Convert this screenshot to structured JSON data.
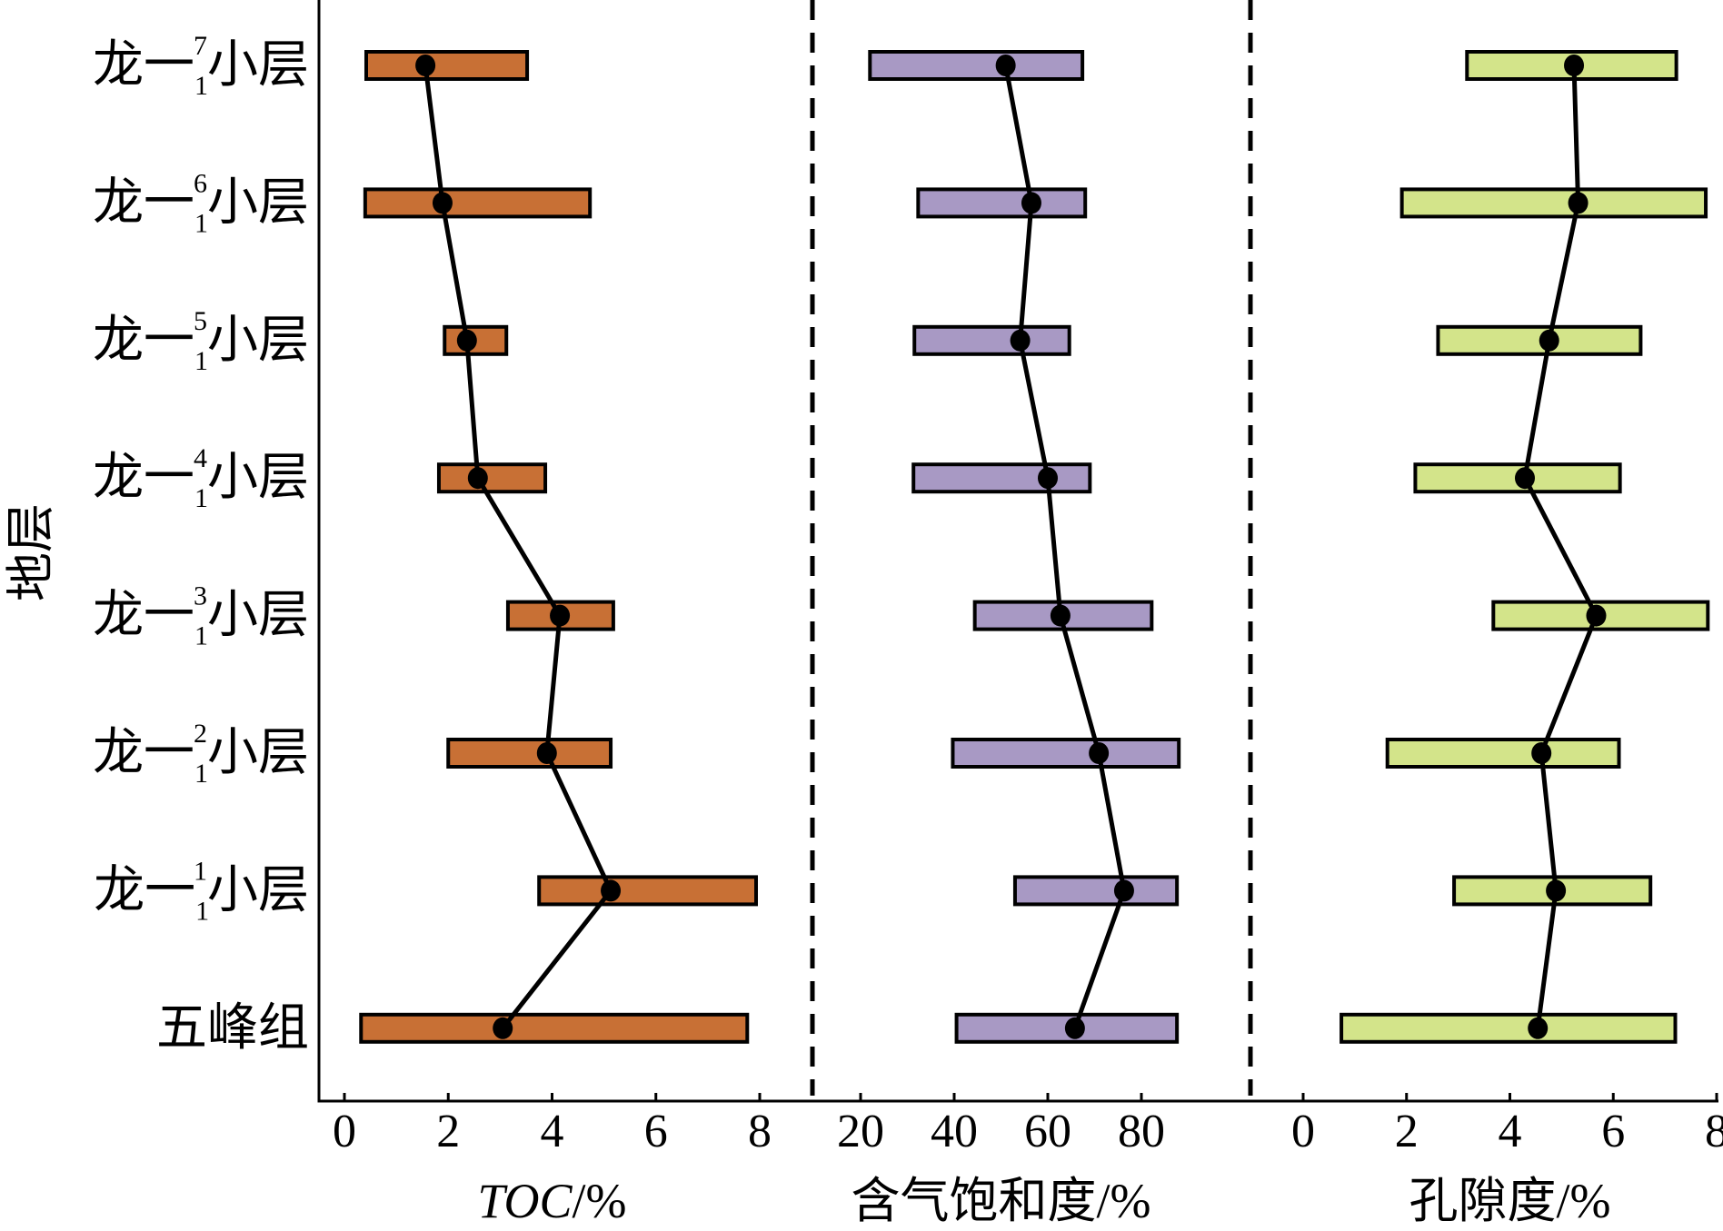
{
  "chart_data": {
    "type": "bar",
    "subtype": "floating-range-bars-with-mean-line",
    "ylabel": "地层",
    "categories": [
      {
        "name": "龙一1 7小层",
        "base": "龙一",
        "sub": "1",
        "sup": "7",
        "suffix": "小层"
      },
      {
        "name": "龙一1 6小层",
        "base": "龙一",
        "sub": "1",
        "sup": "6",
        "suffix": "小层"
      },
      {
        "name": "龙一1 5小层",
        "base": "龙一",
        "sub": "1",
        "sup": "5",
        "suffix": "小层"
      },
      {
        "name": "龙一1 4小层",
        "base": "龙一",
        "sub": "1",
        "sup": "4",
        "suffix": "小层"
      },
      {
        "name": "龙一1 3小层",
        "base": "龙一",
        "sub": "1",
        "sup": "3",
        "suffix": "小层"
      },
      {
        "name": "龙一1 2小层",
        "base": "龙一",
        "sub": "1",
        "sup": "2",
        "suffix": "小层"
      },
      {
        "name": "龙一1 1小层",
        "base": "龙一",
        "sub": "1",
        "sup": "1",
        "suffix": "小层"
      },
      {
        "name": "五峰组",
        "base": "五峰组",
        "sub": "",
        "sup": "",
        "suffix": ""
      }
    ],
    "panels": [
      {
        "id": "toc",
        "xlabel": "TOC/%",
        "xlabel_italic_part": "TOC",
        "xlabel_rest": "/%",
        "xlim": [
          0,
          8
        ],
        "ticks": [
          0,
          2,
          4,
          6,
          8
        ],
        "color": "#C87035",
        "min": [
          0.42,
          0.4,
          1.93,
          1.82,
          3.15,
          2.0,
          3.75,
          0.32
        ],
        "max": [
          3.52,
          4.73,
          3.12,
          3.87,
          5.18,
          5.13,
          7.93,
          7.76
        ],
        "mean": [
          1.56,
          1.89,
          2.36,
          2.57,
          4.15,
          3.9,
          5.13,
          3.05
        ]
      },
      {
        "id": "gas_saturation",
        "xlabel": "含气饱和度/%",
        "xlim": [
          20,
          80
        ],
        "ticks": [
          20,
          40,
          60,
          80
        ],
        "color": "#A899C4",
        "min": [
          22.0,
          32.3,
          31.5,
          31.3,
          44.4,
          39.7,
          53.0,
          40.5
        ],
        "max": [
          67.4,
          68.0,
          64.6,
          69.0,
          82.2,
          88.0,
          87.6,
          87.6
        ],
        "mean": [
          51.0,
          56.5,
          54.1,
          60.0,
          62.7,
          70.9,
          76.3,
          65.8
        ]
      },
      {
        "id": "porosity",
        "xlabel": "孔隙度/%",
        "xlim": [
          0,
          8
        ],
        "ticks": [
          0,
          2,
          4,
          6,
          8
        ],
        "color": "#D3E48A",
        "min": [
          3.17,
          1.91,
          2.61,
          2.17,
          3.68,
          1.63,
          2.92,
          0.74
        ],
        "max": [
          7.22,
          7.79,
          6.53,
          6.13,
          7.83,
          6.11,
          6.72,
          7.2
        ],
        "mean": [
          5.24,
          5.32,
          4.76,
          4.29,
          5.67,
          4.61,
          4.89,
          4.54
        ]
      }
    ],
    "separators": "dashed vertical lines between panels",
    "grid": false,
    "legend": "none"
  }
}
